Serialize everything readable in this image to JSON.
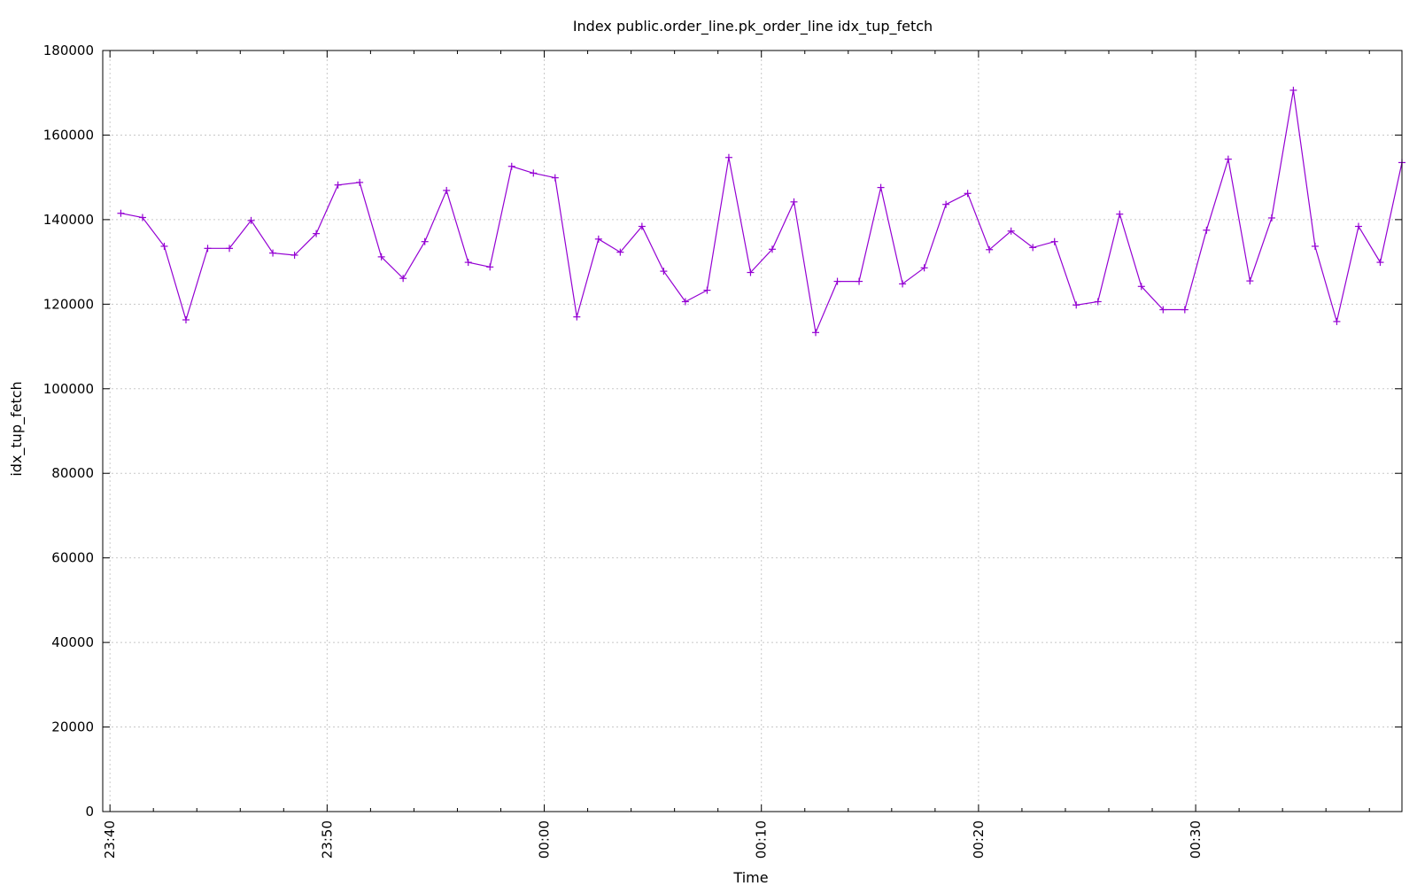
{
  "chart_data": {
    "type": "line",
    "title": "Index public.order_line.pk_order_line idx_tup_fetch",
    "xlabel": "Time",
    "ylabel": "idx_tup_fetch",
    "ylim": [
      0,
      180000
    ],
    "yticks": [
      0,
      20000,
      40000,
      60000,
      80000,
      100000,
      120000,
      140000,
      160000,
      180000
    ],
    "xlim": [
      "23:39:40",
      "00:39:30"
    ],
    "xticks": [
      "23:40",
      "23:50",
      "00:00",
      "00:10",
      "00:20",
      "00:30"
    ],
    "grid": true,
    "legend": "none",
    "series": [
      {
        "color": "#9400d3",
        "marker": "plus",
        "x": [
          "23:40:30",
          "23:41:30",
          "23:42:30",
          "23:43:30",
          "23:44:30",
          "23:45:30",
          "23:46:30",
          "23:47:30",
          "23:48:30",
          "23:49:30",
          "23:50:30",
          "23:51:30",
          "23:52:30",
          "23:53:30",
          "23:54:30",
          "23:55:30",
          "23:56:30",
          "23:57:30",
          "23:58:30",
          "23:59:30",
          "00:00:30",
          "00:01:30",
          "00:02:30",
          "00:03:30",
          "00:04:30",
          "00:05:30",
          "00:06:30",
          "00:07:30",
          "00:08:30",
          "00:09:30",
          "00:10:30",
          "00:11:30",
          "00:12:30",
          "00:13:30",
          "00:14:30",
          "00:15:30",
          "00:16:30",
          "00:17:30",
          "00:18:30",
          "00:19:30",
          "00:20:30",
          "00:21:30",
          "00:22:30",
          "00:23:30",
          "00:24:30",
          "00:25:30",
          "00:26:30",
          "00:27:30",
          "00:28:30",
          "00:29:30",
          "00:30:30",
          "00:31:30",
          "00:32:30",
          "00:33:30",
          "00:34:30",
          "00:35:30",
          "00:36:30",
          "00:37:30",
          "00:38:30",
          "00:39:30"
        ],
        "values": [
          141500,
          140500,
          133700,
          116300,
          133200,
          133200,
          139800,
          132100,
          131600,
          136700,
          148200,
          148800,
          131200,
          126100,
          134800,
          146900,
          129900,
          128800,
          152600,
          151000,
          149900,
          117000,
          135400,
          132300,
          138400,
          127800,
          120600,
          123300,
          154700,
          127500,
          133000,
          144200,
          113300,
          125400,
          125400,
          147600,
          124800,
          128600,
          143600,
          146200,
          132900,
          137300,
          133400,
          134800,
          119800,
          120600,
          141300,
          124200,
          118700,
          118700,
          137500,
          154300,
          125500,
          140400,
          170600,
          133700,
          115900,
          138400,
          129900,
          153500
        ]
      }
    ]
  }
}
